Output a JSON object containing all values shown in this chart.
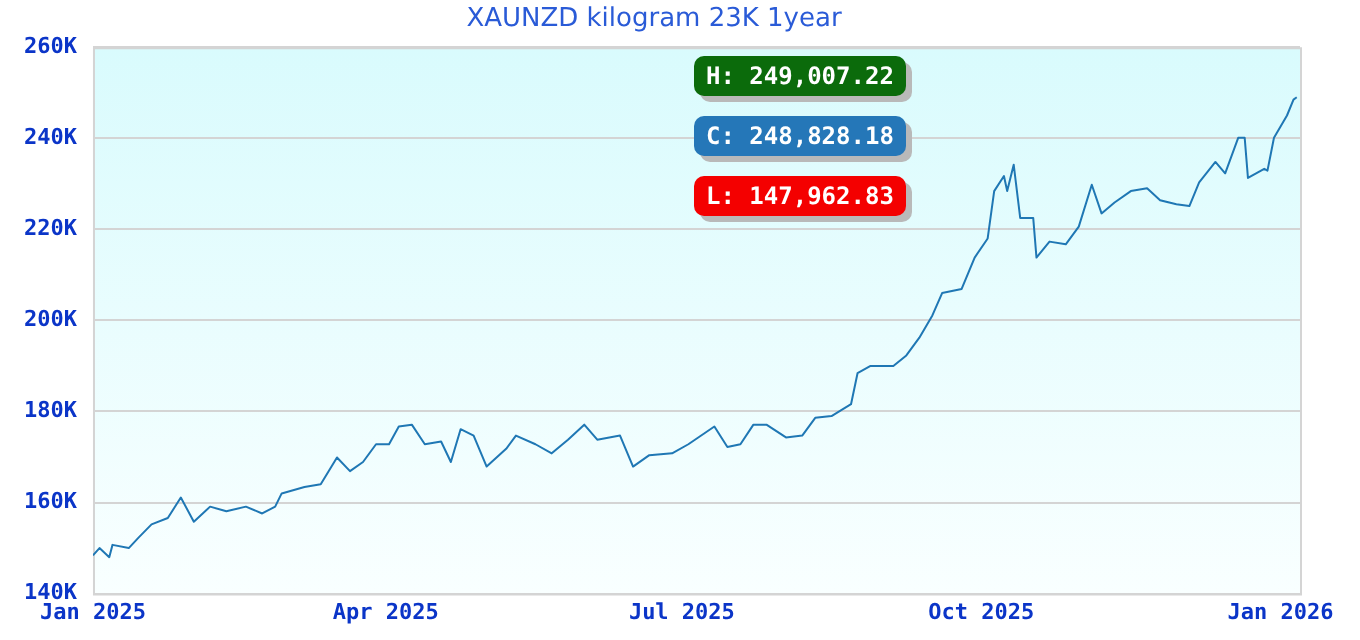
{
  "chart_data": {
    "type": "line",
    "title": "XAUNZD kilogram 23K 1year",
    "x": [
      "2025-01-01",
      "2025-01-03",
      "2025-01-06",
      "2025-01-07",
      "2025-01-12",
      "2025-01-15",
      "2025-01-19",
      "2025-01-24",
      "2025-01-28",
      "2025-02-01",
      "2025-02-06",
      "2025-02-11",
      "2025-02-17",
      "2025-02-22",
      "2025-02-26",
      "2025-02-28",
      "2025-03-07",
      "2025-03-12",
      "2025-03-17",
      "2025-03-21",
      "2025-03-25",
      "2025-03-29",
      "2025-04-02",
      "2025-04-05",
      "2025-04-09",
      "2025-04-13",
      "2025-04-18",
      "2025-04-21",
      "2025-04-24",
      "2025-04-28",
      "2025-05-02",
      "2025-05-08",
      "2025-05-11",
      "2025-05-17",
      "2025-05-22",
      "2025-05-27",
      "2025-06-01",
      "2025-06-05",
      "2025-06-12",
      "2025-06-16",
      "2025-06-21",
      "2025-06-28",
      "2025-07-03",
      "2025-07-11",
      "2025-07-15",
      "2025-07-19",
      "2025-07-23",
      "2025-07-27",
      "2025-08-02",
      "2025-08-07",
      "2025-08-11",
      "2025-08-16",
      "2025-08-22",
      "2025-08-24",
      "2025-08-28",
      "2025-09-04",
      "2025-09-08",
      "2025-09-12",
      "2025-09-16",
      "2025-09-19",
      "2025-09-25",
      "2025-09-29",
      "2025-10-03",
      "2025-10-05",
      "2025-10-08",
      "2025-10-09",
      "2025-10-11",
      "2025-10-13",
      "2025-10-17",
      "2025-10-18",
      "2025-10-22",
      "2025-10-27",
      "2025-10-31",
      "2025-11-04",
      "2025-11-07",
      "2025-11-11",
      "2025-11-16",
      "2025-11-21",
      "2025-11-25",
      "2025-11-30",
      "2025-12-04",
      "2025-12-07",
      "2025-12-12",
      "2025-12-15",
      "2025-12-19",
      "2025-12-21",
      "2025-12-22",
      "2025-12-27",
      "2025-12-28",
      "2025-12-30",
      "2026-01-03",
      "2026-01-05",
      "2026-01-06"
    ],
    "series": [
      {
        "color": "#1f77b4",
        "values": [
          148400,
          150000,
          148000,
          150700,
          150000,
          152300,
          155200,
          156600,
          161100,
          155800,
          159100,
          158100,
          159100,
          157600,
          159100,
          162000,
          163400,
          164000,
          169900,
          166900,
          168900,
          172800,
          172800,
          176700,
          177100,
          172800,
          173400,
          168900,
          176100,
          174700,
          167900,
          171800,
          174700,
          172800,
          170800,
          173800,
          177100,
          173800,
          174700,
          167900,
          170400,
          170800,
          172800,
          176700,
          172200,
          172800,
          177100,
          177100,
          174300,
          174700,
          178600,
          179000,
          181600,
          188400,
          190000,
          190000,
          192300,
          196200,
          201100,
          206000,
          206900,
          213800,
          218000,
          228400,
          231700,
          228400,
          234200,
          222500,
          222500,
          213800,
          217300,
          216700,
          220600,
          229800,
          223500,
          225900,
          228400,
          229000,
          226400,
          225500,
          225100,
          230300,
          234800,
          232300,
          240100,
          240100,
          231300,
          233300,
          232900,
          240100,
          245000,
          248500,
          249000
        ]
      }
    ],
    "xlim": [
      "2025-01-01",
      "2026-01-07"
    ],
    "xticks": [
      {
        "value": "2025-01-01",
        "label": "Jan 2025"
      },
      {
        "value": "2025-04-01",
        "label": "Apr 2025"
      },
      {
        "value": "2025-07-01",
        "label": "Jul 2025"
      },
      {
        "value": "2025-10-01",
        "label": "Oct 2025"
      },
      {
        "value": "2026-01-01",
        "label": "Jan 2026"
      }
    ],
    "ylim": [
      140000,
      260000
    ],
    "yticks": [
      {
        "value": 140000,
        "label": "140K"
      },
      {
        "value": 160000,
        "label": "160K"
      },
      {
        "value": 180000,
        "label": "180K"
      },
      {
        "value": 200000,
        "label": "200K"
      },
      {
        "value": 220000,
        "label": "220K"
      },
      {
        "value": 240000,
        "label": "240K"
      },
      {
        "value": 260000,
        "label": "260K"
      }
    ],
    "grid": "y",
    "legend": false,
    "marker": "none",
    "line_style": "solid",
    "annotations": [
      "H: 249,007.22",
      "C: 248,828.18",
      "L: 147,962.83"
    ]
  }
}
